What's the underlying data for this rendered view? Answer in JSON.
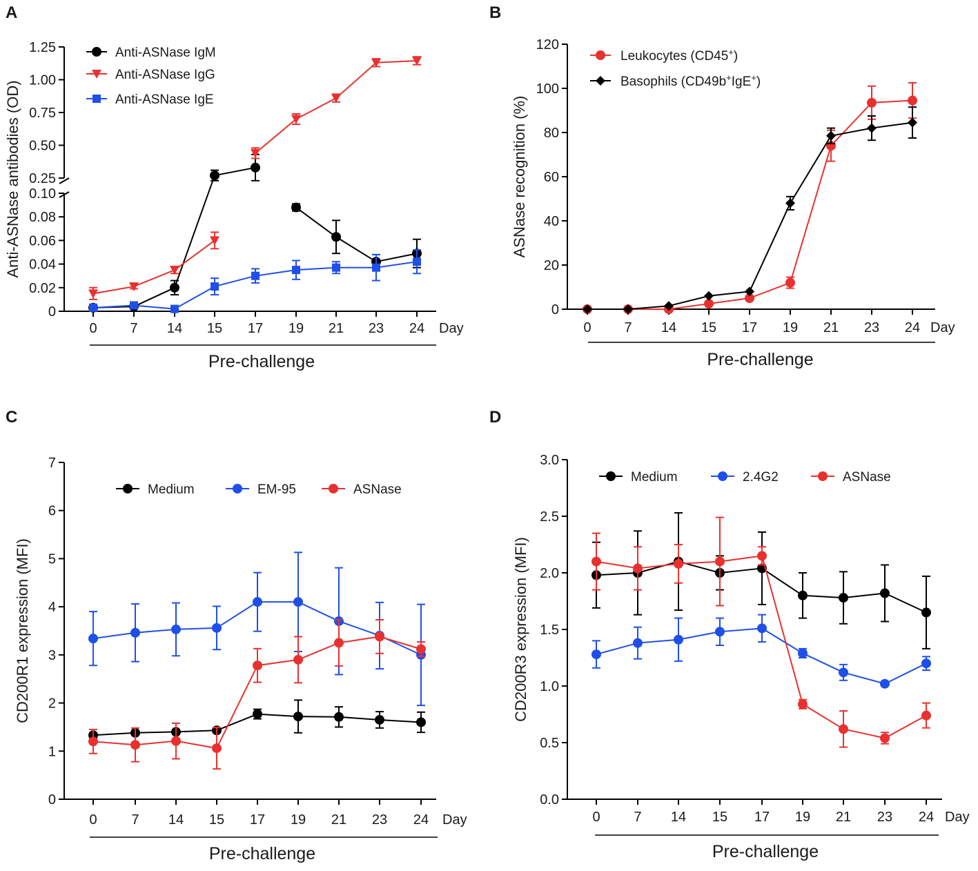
{
  "chart_data": [
    {
      "panel": "A",
      "type": "line",
      "ylabel": "Anti-ASNase antibodies (OD)",
      "xunit": "Day",
      "bracket_label": "Pre-challenge",
      "categories": [
        "0",
        "7",
        "14",
        "15",
        "17",
        "19",
        "21",
        "23",
        "24"
      ],
      "axis_break": true,
      "ylim_lower": [
        0,
        0.1
      ],
      "yticks_lower": [
        "0",
        "0.02",
        "0.04",
        "0.06",
        "0.08",
        "0.10"
      ],
      "ylim_upper": [
        0.25,
        1.25
      ],
      "yticks_upper": [
        "0.25",
        "0.50",
        "0.75",
        "1.00",
        "1.25"
      ],
      "legend_position": "top-left",
      "series": [
        {
          "name": "Anti-ASNase IgM",
          "color": "#000000",
          "marker": "circle",
          "values": [
            0.003,
            0.004,
            0.02,
            0.27,
            0.33,
            0.088,
            0.063,
            0.042,
            0.049
          ],
          "errors": [
            0.002,
            0.002,
            0.006,
            0.04,
            0.1,
            0.003,
            0.014,
            0.006,
            0.012
          ],
          "connect": [
            true,
            true,
            true,
            true,
            false,
            true,
            true,
            true
          ]
        },
        {
          "name": "Anti-ASNase IgG",
          "color": "#e8312f",
          "marker": "triangle-down",
          "values": [
            0.015,
            0.021,
            0.035,
            0.06,
            0.44,
            0.7,
            0.86,
            1.13,
            1.145
          ],
          "errors": [
            0.005,
            0.002,
            0.003,
            0.007,
            0.04,
            0.04,
            0.03,
            0.03,
            0.03
          ],
          "connect": [
            true,
            true,
            true,
            false,
            true,
            true,
            true,
            true
          ]
        },
        {
          "name": "Anti-ASNase IgE",
          "color": "#1f4fe8",
          "marker": "square",
          "values": [
            0.003,
            0.005,
            0.002,
            0.021,
            0.03,
            0.035,
            0.037,
            0.037,
            0.042
          ],
          "errors": [
            0.002,
            0.002,
            0.001,
            0.007,
            0.006,
            0.008,
            0.005,
            0.011,
            0.01
          ],
          "connect": [
            true,
            true,
            true,
            true,
            true,
            true,
            true,
            true
          ]
        }
      ]
    },
    {
      "panel": "B",
      "type": "line",
      "ylabel": "ASNase recognition (%)",
      "xunit": "Day",
      "bracket_label": "Pre-challenge",
      "categories": [
        "0",
        "7",
        "14",
        "15",
        "17",
        "19",
        "21",
        "23",
        "24"
      ],
      "ylim": [
        0,
        120
      ],
      "yticks": [
        "0",
        "20",
        "40",
        "60",
        "80",
        "100",
        "120"
      ],
      "legend_position": "top-left",
      "series": [
        {
          "name": "Leukocytes (CD45",
          "superscript": "+",
          "suffix": ")",
          "color": "#e8312f",
          "marker": "circle",
          "values": [
            0,
            0,
            0,
            2.5,
            5,
            12,
            74,
            93.5,
            94.5
          ],
          "errors": [
            0,
            0,
            0,
            0,
            0,
            2.5,
            7,
            7.5,
            8
          ]
        },
        {
          "name": "Basophils (CD49b",
          "superscript": "+",
          "name_mid": "IgE",
          "superscript2": "+",
          "suffix": ")",
          "color": "#000000",
          "marker": "diamond",
          "values": [
            0,
            0,
            1.5,
            6,
            8,
            48,
            78.5,
            82,
            84.5
          ],
          "errors": [
            0,
            0,
            0,
            0,
            0,
            3,
            3.5,
            5.5,
            7
          ]
        }
      ]
    },
    {
      "panel": "C",
      "type": "line",
      "ylabel": "CD200R1 expression (MFI)",
      "xunit": "Day",
      "bracket_label": "Pre-challenge",
      "categories": [
        "0",
        "7",
        "14",
        "15",
        "17",
        "19",
        "21",
        "23",
        "24"
      ],
      "ylim": [
        0,
        7
      ],
      "yticks": [
        "0",
        "1",
        "2",
        "3",
        "4",
        "5",
        "6",
        "7"
      ],
      "legend_position": "top",
      "series": [
        {
          "name": "Medium",
          "color": "#000000",
          "marker": "circle",
          "values": [
            1.33,
            1.38,
            1.4,
            1.43,
            1.77,
            1.72,
            1.71,
            1.65,
            1.6
          ],
          "errors": [
            0.05,
            0.05,
            0.05,
            0.05,
            0.1,
            0.34,
            0.21,
            0.17,
            0.21
          ]
        },
        {
          "name": "EM-95",
          "color": "#1f4fe8",
          "marker": "circle",
          "values": [
            3.34,
            3.46,
            3.53,
            3.56,
            4.1,
            4.1,
            3.7,
            3.4,
            3.0
          ],
          "errors": [
            0.56,
            0.6,
            0.55,
            0.45,
            0.61,
            1.03,
            1.11,
            0.69,
            1.05
          ]
        },
        {
          "name": "ASNase",
          "color": "#e8312f",
          "marker": "circle",
          "values": [
            1.2,
            1.13,
            1.21,
            1.06,
            2.78,
            2.9,
            3.25,
            3.38,
            3.12
          ],
          "errors": [
            0.25,
            0.35,
            0.37,
            0.43,
            0.35,
            0.48,
            0.48,
            0.35,
            0.15
          ]
        }
      ]
    },
    {
      "panel": "D",
      "type": "line",
      "ylabel": "CD200R3 expression (MFI)",
      "xunit": "Day",
      "bracket_label": "Pre-challenge",
      "categories": [
        "0",
        "7",
        "14",
        "15",
        "17",
        "19",
        "21",
        "23",
        "24"
      ],
      "ylim": [
        0,
        3.0
      ],
      "yticks": [
        "0.0",
        "0.5",
        "1.0",
        "1.5",
        "2.0",
        "2.5",
        "3.0"
      ],
      "legend_position": "top",
      "series": [
        {
          "name": "Medium",
          "color": "#000000",
          "marker": "circle",
          "values": [
            1.98,
            2.0,
            2.1,
            2.0,
            2.04,
            1.8,
            1.78,
            1.82,
            1.65
          ],
          "errors": [
            0.29,
            0.37,
            0.43,
            0.15,
            0.32,
            0.2,
            0.23,
            0.25,
            0.32
          ]
        },
        {
          "name": "2.4G2",
          "color": "#1f4fe8",
          "marker": "circle",
          "values": [
            1.28,
            1.38,
            1.41,
            1.48,
            1.51,
            1.29,
            1.12,
            1.02,
            1.2
          ],
          "errors": [
            0.12,
            0.14,
            0.19,
            0.12,
            0.12,
            0.04,
            0.07,
            0,
            0.06
          ]
        },
        {
          "name": "ASNase",
          "color": "#e8312f",
          "marker": "circle",
          "values": [
            2.1,
            2.04,
            2.08,
            2.1,
            2.15,
            0.84,
            0.62,
            0.54,
            0.74
          ],
          "errors": [
            0.25,
            0.19,
            0.17,
            0.39,
            0.08,
            0.04,
            0.16,
            0.05,
            0.11
          ]
        }
      ]
    }
  ]
}
